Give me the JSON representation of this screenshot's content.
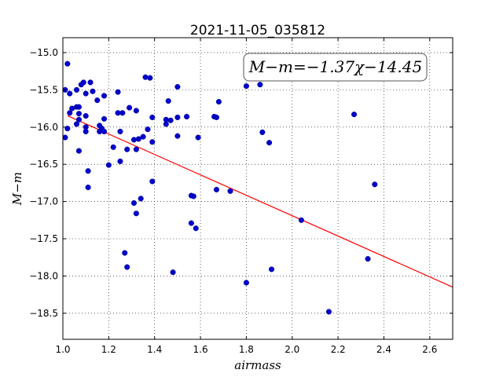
{
  "chart_data": {
    "type": "scatter",
    "title": "2021-11-05_035812",
    "xlabel": "airmass",
    "ylabel": "M−m",
    "xlim": [
      1.0,
      2.7
    ],
    "ylim": [
      -18.85,
      -14.8
    ],
    "x_ticks": [
      1.0,
      1.2,
      1.4,
      1.6,
      1.8,
      2.0,
      2.2,
      2.4,
      2.6
    ],
    "x_tick_labels": [
      "1.0",
      "1.2",
      "1.4",
      "1.6",
      "1.8",
      "2.0",
      "2.2",
      "2.4",
      "2.6"
    ],
    "y_ticks": [
      -15.0,
      -15.5,
      -16.0,
      -16.5,
      -17.0,
      -17.5,
      -18.0,
      -18.5
    ],
    "y_tick_labels": [
      "−15.0",
      "−15.5",
      "−16.0",
      "−16.5",
      "−17.0",
      "−17.5",
      "−18.0",
      "−18.5"
    ],
    "grid": true,
    "annotation": "M−m=−1.37χ−14.45",
    "fit": {
      "slope": -1.37,
      "intercept": -14.45,
      "color": "#ff0000"
    },
    "marker_color": "#0000cc",
    "points": [
      [
        1.01,
        -15.5
      ],
      [
        1.02,
        -15.15
      ],
      [
        1.02,
        -16.02
      ],
      [
        1.01,
        -16.14
      ],
      [
        1.03,
        -15.55
      ],
      [
        1.03,
        -15.81
      ],
      [
        1.04,
        -15.75
      ],
      [
        1.06,
        -15.5
      ],
      [
        1.06,
        -15.73
      ],
      [
        1.06,
        -15.96
      ],
      [
        1.07,
        -15.73
      ],
      [
        1.07,
        -15.82
      ],
      [
        1.07,
        -15.9
      ],
      [
        1.08,
        -15.43
      ],
      [
        1.07,
        -16.32
      ],
      [
        1.09,
        -15.4
      ],
      [
        1.1,
        -15.55
      ],
      [
        1.1,
        -15.85
      ],
      [
        1.1,
        -16.0
      ],
      [
        1.1,
        -16.06
      ],
      [
        1.11,
        -16.59
      ],
      [
        1.11,
        -16.81
      ],
      [
        1.12,
        -15.4
      ],
      [
        1.13,
        -15.52
      ],
      [
        1.15,
        -15.64
      ],
      [
        1.16,
        -15.98
      ],
      [
        1.16,
        -16.06
      ],
      [
        1.17,
        -16.02
      ],
      [
        1.18,
        -15.58
      ],
      [
        1.18,
        -15.89
      ],
      [
        1.18,
        -16.06
      ],
      [
        1.2,
        -16.51
      ],
      [
        1.22,
        -16.27
      ],
      [
        1.24,
        -15.53
      ],
      [
        1.24,
        -15.81
      ],
      [
        1.25,
        -16.46
      ],
      [
        1.26,
        -15.81
      ],
      [
        1.25,
        -16.06
      ],
      [
        1.27,
        -17.69
      ],
      [
        1.28,
        -17.88
      ],
      [
        1.28,
        -16.3
      ],
      [
        1.29,
        -15.74
      ],
      [
        1.31,
        -16.17
      ],
      [
        1.31,
        -17.02
      ],
      [
        1.32,
        -15.78
      ],
      [
        1.32,
        -16.3
      ],
      [
        1.32,
        -17.16
      ],
      [
        1.33,
        -16.16
      ],
      [
        1.34,
        -16.96
      ],
      [
        1.35,
        -16.13
      ],
      [
        1.36,
        -15.33
      ],
      [
        1.37,
        -16.03
      ],
      [
        1.38,
        -15.34
      ],
      [
        1.39,
        -15.87
      ],
      [
        1.39,
        -16.2
      ],
      [
        1.39,
        -16.73
      ],
      [
        1.45,
        -15.96
      ],
      [
        1.45,
        -15.9
      ],
      [
        1.46,
        -15.65
      ],
      [
        1.47,
        -15.91
      ],
      [
        1.48,
        -17.95
      ],
      [
        1.5,
        -15.46
      ],
      [
        1.5,
        -15.87
      ],
      [
        1.5,
        -16.12
      ],
      [
        1.54,
        -15.86
      ],
      [
        1.56,
        -16.92
      ],
      [
        1.56,
        -17.29
      ],
      [
        1.57,
        -16.93
      ],
      [
        1.58,
        -17.36
      ],
      [
        1.59,
        -16.14
      ],
      [
        1.66,
        -15.86
      ],
      [
        1.67,
        -16.84
      ],
      [
        1.67,
        -15.87
      ],
      [
        1.68,
        -15.66
      ],
      [
        1.73,
        -16.86
      ],
      [
        1.8,
        -15.45
      ],
      [
        1.8,
        -18.09
      ],
      [
        1.86,
        -15.43
      ],
      [
        1.87,
        -16.07
      ],
      [
        1.9,
        -16.21
      ],
      [
        1.91,
        -17.91
      ],
      [
        2.04,
        -17.25
      ],
      [
        2.16,
        -18.48
      ],
      [
        2.27,
        -15.83
      ],
      [
        2.33,
        -17.77
      ],
      [
        2.36,
        -16.77
      ]
    ]
  }
}
